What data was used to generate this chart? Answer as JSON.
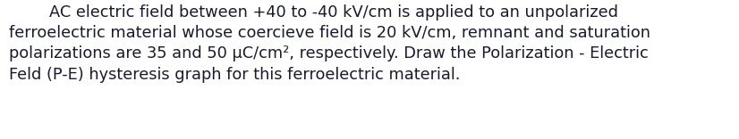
{
  "figsize": [
    8.26,
    1.56
  ],
  "dpi": 100,
  "background_color": "#ffffff",
  "text_color": "#1a1a2e",
  "font_size": 12.8,
  "font_weight": "normal",
  "line1": "        AC electric field between +40 to -40 kV/cm is applied to an unpolarized",
  "line2": "ferroelectric material whose coercieve field is 20 kV/cm, remnant and saturation",
  "line3": "polarizations are 35 and 50 μC/cm², respectively. Draw the Polarization - Electric",
  "line4": "Feld (P-E) hysteresis graph for this ferroelectric material."
}
